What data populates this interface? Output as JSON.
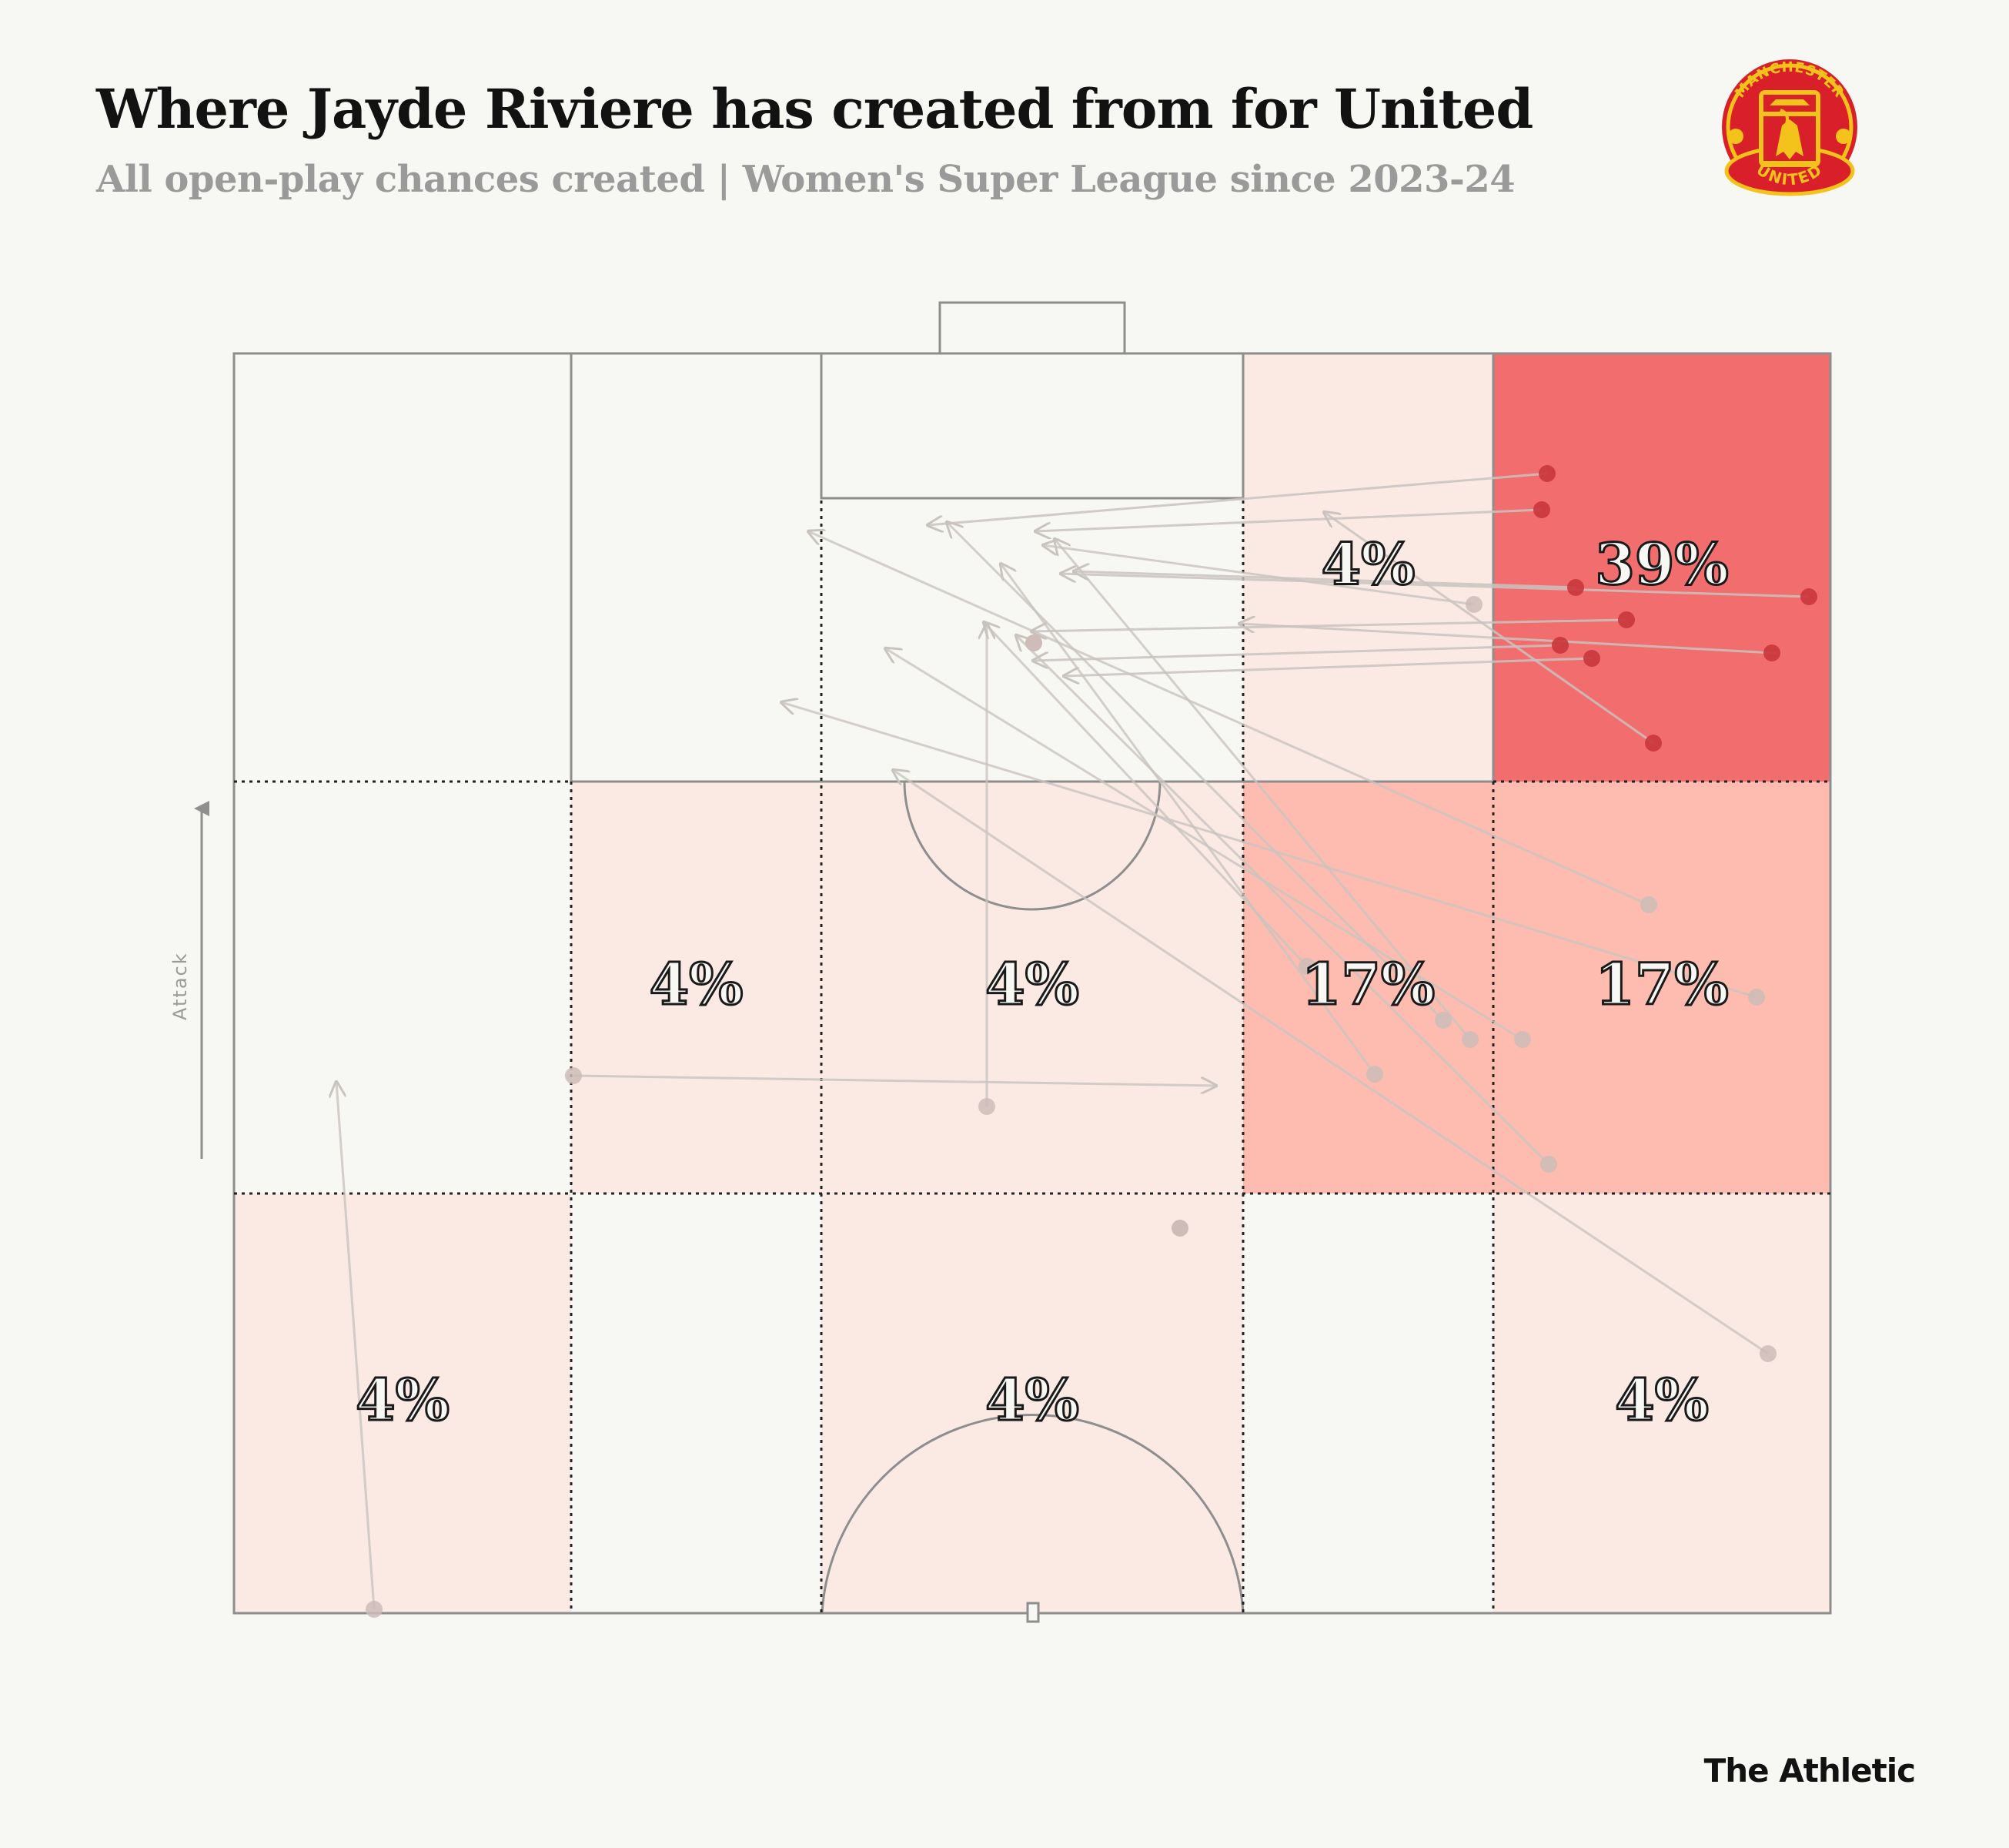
{
  "header": {
    "title": "Where Jayde Riviere has created from for United",
    "subtitle": "All open-play chances created | Women's Super League since 2023-24"
  },
  "brand": {
    "name": "The Athletic"
  },
  "crest": {
    "top_text": "MANCHESTER",
    "bottom_text": "UNITED"
  },
  "pitch": {
    "direction_label": "Attack"
  },
  "colors": {
    "background": "#f7f7f4",
    "zone_low": "#fbe9e3",
    "zone_mid": "#fdbcaf",
    "zone_high": "#f26e6e",
    "arrow_faded": "#c9c3bf",
    "dot_faded": "#cdbcb8",
    "dot_strong": "#c8363b"
  },
  "chart_data": {
    "type": "heatmap",
    "title": "Where Jayde Riviere has created from for United",
    "subtitle": "All open-play chances created | Women's Super League since 2023-24",
    "zones": [
      {
        "row": 0,
        "col": 0,
        "pct": null
      },
      {
        "row": 0,
        "col": 1,
        "pct": null
      },
      {
        "row": 0,
        "col": 2,
        "pct": null
      },
      {
        "row": 0,
        "col": 3,
        "pct": 4,
        "label": "4%"
      },
      {
        "row": 0,
        "col": 4,
        "pct": 39,
        "label": "39%"
      },
      {
        "row": 1,
        "col": 0,
        "pct": null
      },
      {
        "row": 1,
        "col": 1,
        "pct": 4,
        "label": "4%"
      },
      {
        "row": 1,
        "col": 2,
        "pct": 4,
        "label": "4%"
      },
      {
        "row": 1,
        "col": 3,
        "pct": 17,
        "label": "17%"
      },
      {
        "row": 1,
        "col": 4,
        "pct": 17,
        "label": "17%"
      },
      {
        "row": 2,
        "col": 0,
        "pct": 4,
        "label": "4%"
      },
      {
        "row": 2,
        "col": 1,
        "pct": null
      },
      {
        "row": 2,
        "col": 2,
        "pct": 4,
        "label": "4%"
      },
      {
        "row": 2,
        "col": 3,
        "pct": null
      },
      {
        "row": 2,
        "col": 4,
        "pct": 4,
        "label": "4%"
      }
    ],
    "passes": [
      {
        "from": [
          2010,
          615
        ],
        "to": [
          1205,
          682
        ],
        "strong": true
      },
      {
        "from": [
          2003,
          662
        ],
        "to": [
          1345,
          690
        ],
        "strong": true
      },
      {
        "from": [
          1915,
          785
        ],
        "to": [
          1355,
          708
        ],
        "strong": false
      },
      {
        "from": [
          2047,
          763
        ],
        "to": [
          1395,
          742
        ],
        "strong": true
      },
      {
        "from": [
          2350,
          775
        ],
        "to": [
          1378,
          745
        ],
        "strong": true
      },
      {
        "from": [
          2113,
          805
        ],
        "to": [
          1340,
          820
        ],
        "strong": true
      },
      {
        "from": [
          2027,
          838
        ],
        "to": [
          1342,
          858
        ],
        "strong": true
      },
      {
        "from": [
          2068,
          855
        ],
        "to": [
          1382,
          878
        ],
        "strong": true
      },
      {
        "from": [
          2302,
          848
        ],
        "to": [
          1610,
          810
        ],
        "strong": true
      },
      {
        "from": [
          2148,
          965
        ],
        "to": [
          1720,
          665
        ],
        "strong": true
      },
      {
        "from": [
          2142,
          1175
        ],
        "to": [
          1050,
          690
        ],
        "strong": false
      },
      {
        "from": [
          2282,
          1295
        ],
        "to": [
          1015,
          912
        ],
        "strong": false
      },
      {
        "from": [
          1875,
          1325
        ],
        "to": [
          1230,
          678
        ],
        "strong": false
      },
      {
        "from": [
          1786,
          1395
        ],
        "to": [
          1300,
          732
        ],
        "strong": false
      },
      {
        "from": [
          1910,
          1350
        ],
        "to": [
          1370,
          700
        ],
        "strong": false
      },
      {
        "from": [
          1698,
          1255
        ],
        "to": [
          1278,
          808
        ],
        "strong": false
      },
      {
        "from": [
          1978,
          1350
        ],
        "to": [
          1150,
          842
        ],
        "strong": false
      },
      {
        "from": [
          2012,
          1512
        ],
        "to": [
          1320,
          825
        ],
        "strong": false
      },
      {
        "from": [
          2297,
          1758
        ],
        "to": [
          1160,
          1000
        ],
        "strong": false
      },
      {
        "from": [
          1282,
          1437
        ],
        "to": [
          1282,
          810
        ],
        "strong": false
      },
      {
        "from": [
          745,
          1397
        ],
        "to": [
          1580,
          1410
        ],
        "strong": false
      },
      {
        "from": [
          486,
          2090
        ],
        "to": [
          437,
          1405
        ],
        "strong": false
      }
    ],
    "extra_points": [
      {
        "at": [
          1533,
          1595
        ],
        "strong": false
      },
      {
        "at": [
          1343,
          835
        ],
        "strong": false
      }
    ]
  }
}
